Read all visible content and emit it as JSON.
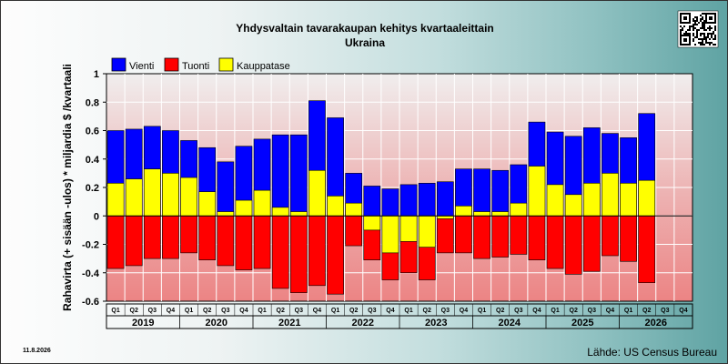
{
  "chart_data": {
    "type": "bar",
    "title": "Yhdysvaltain tavarakaupan kehitys kvartaaleittain",
    "subtitle": "Ukraina",
    "ylabel": "Rahavirta (+ sisään -ulos)  * miljardia $ /kvartaali",
    "ylim": [
      -0.6,
      1
    ],
    "yticks": [
      "1",
      "0.8",
      "0.6",
      "0.4",
      "0.2",
      "0",
      "-0.2",
      "-0.4",
      "-0.6"
    ],
    "grid": true,
    "legend_position": "top-left",
    "quarters": [
      "Q1",
      "Q2",
      "Q3",
      "Q4",
      "Q1",
      "Q2",
      "Q3",
      "Q4",
      "Q1",
      "Q2",
      "Q3",
      "Q4",
      "Q1",
      "Q2",
      "Q3",
      "Q4",
      "Q1",
      "Q2",
      "Q3",
      "Q4",
      "Q1",
      "Q2",
      "Q3",
      "Q4",
      "Q1",
      "Q2",
      "Q3",
      "Q4",
      "Q1",
      "Q2",
      "Q3",
      "Q4"
    ],
    "years": [
      "2019",
      "2020",
      "2021",
      "2022",
      "2023",
      "2024",
      "2025",
      "2026"
    ],
    "series": [
      {
        "name": "Vienti",
        "color": "#0000ff",
        "values": [
          0.6,
          0.61,
          0.63,
          0.6,
          0.53,
          0.48,
          0.38,
          0.49,
          0.54,
          0.57,
          0.57,
          0.81,
          0.69,
          0.3,
          0.21,
          0.19,
          0.22,
          0.23,
          0.24,
          0.33,
          0.33,
          0.32,
          0.36,
          0.66,
          0.59,
          0.56,
          0.62,
          0.58,
          0.55,
          0.72,
          null,
          null
        ]
      },
      {
        "name": "Tuonti",
        "color": "#ff0000",
        "values": [
          -0.37,
          -0.35,
          -0.3,
          -0.3,
          -0.26,
          -0.31,
          -0.35,
          -0.38,
          -0.37,
          -0.51,
          -0.54,
          -0.49,
          -0.55,
          -0.21,
          -0.31,
          -0.45,
          -0.4,
          -0.45,
          -0.26,
          -0.26,
          -0.3,
          -0.29,
          -0.27,
          -0.31,
          -0.37,
          -0.41,
          -0.39,
          -0.28,
          -0.32,
          -0.47,
          null,
          null
        ]
      },
      {
        "name": "Kauppatase",
        "color": "#ffff00",
        "values": [
          0.23,
          0.26,
          0.33,
          0.3,
          0.27,
          0.17,
          0.03,
          0.11,
          0.18,
          0.06,
          0.03,
          0.32,
          0.14,
          0.09,
          -0.1,
          -0.26,
          -0.18,
          -0.22,
          -0.02,
          0.07,
          0.03,
          0.03,
          0.09,
          0.35,
          0.22,
          0.15,
          0.23,
          0.3,
          0.23,
          0.25,
          null,
          null
        ]
      }
    ]
  },
  "footer": {
    "date": "11.8.2026",
    "source": "Lähde: US Census Bureau"
  },
  "qr_icon": "qr-code-icon"
}
